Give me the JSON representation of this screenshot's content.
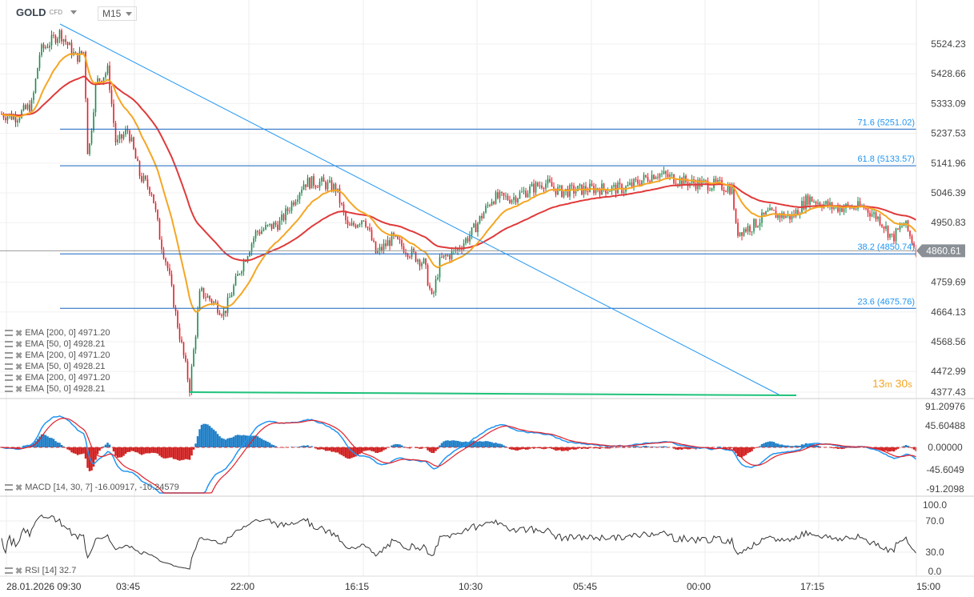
{
  "header": {
    "symbol": "GOLD",
    "instrument_type": "CFD",
    "timeframe": "M15"
  },
  "legends": {
    "ema": [
      {
        "label": "EMA",
        "params": "[200,  0]",
        "value": "4971.20"
      },
      {
        "label": "EMA",
        "params": "[50,  0]",
        "value": "4928.21"
      },
      {
        "label": "EMA",
        "params": "[200,  0]",
        "value": "4971.20"
      },
      {
        "label": "EMA",
        "params": "[50,  0]",
        "value": "4928.21"
      },
      {
        "label": "EMA",
        "params": "[200,  0]",
        "value": "4971.20"
      },
      {
        "label": "EMA",
        "params": "[50,  0]",
        "value": "4928.21"
      }
    ],
    "macd": {
      "label": "MACD",
      "params": "[14, 30, 7]",
      "value": "-16.00917,  -10.24579"
    },
    "rsi": {
      "label": "RSI",
      "params": "[14]",
      "value": "32.7"
    }
  },
  "timer": {
    "minutes": "13",
    "m": "m",
    "seconds": "30",
    "s": "s"
  },
  "colors": {
    "up": "#1e8a4c",
    "down": "#e0202a",
    "ema50": "#f5a623",
    "ema200": "#e03a3a",
    "trend": "#2196f3",
    "support": "#1ec27a",
    "fib": "#1976d2",
    "macd": "#2196f3",
    "signal": "#e0202a",
    "rsi": "#333333"
  },
  "chart_data": {
    "type": "candlestick",
    "symbol": "GOLD",
    "price_axis_ticks": [
      "5524.23",
      "5428.66",
      "5333.09",
      "5237.53",
      "5141.96",
      "5046.39",
      "4950.83",
      "4759.69",
      "4664.13",
      "4568.56",
      "4472.99",
      "4377.43"
    ],
    "current_price": "4860.61",
    "time_ticks": [
      "28.01.2026  09:30",
      "03:45",
      "22:00",
      "16:15",
      "10:30",
      "05:45",
      "00:00",
      "17:15",
      "15:00"
    ],
    "close_path": [
      [
        0,
        5300
      ],
      [
        20,
        5290
      ],
      [
        40,
        5330
      ],
      [
        50,
        5500
      ],
      [
        75,
        5560
      ],
      [
        95,
        5480
      ],
      [
        105,
        5500
      ],
      [
        110,
        5150
      ],
      [
        120,
        5400
      ],
      [
        135,
        5440
      ],
      [
        145,
        5200
      ],
      [
        160,
        5250
      ],
      [
        175,
        5100
      ],
      [
        190,
        5050
      ],
      [
        200,
        4900
      ],
      [
        210,
        4800
      ],
      [
        220,
        4650
      ],
      [
        237,
        4420
      ],
      [
        250,
        4730
      ],
      [
        265,
        4700
      ],
      [
        280,
        4660
      ],
      [
        300,
        4800
      ],
      [
        320,
        4920
      ],
      [
        350,
        4950
      ],
      [
        380,
        5080
      ],
      [
        400,
        5080
      ],
      [
        420,
        5060
      ],
      [
        435,
        4930
      ],
      [
        455,
        4970
      ],
      [
        470,
        4850
      ],
      [
        490,
        4900
      ],
      [
        510,
        4860
      ],
      [
        530,
        4820
      ],
      [
        540,
        4700
      ],
      [
        550,
        4830
      ],
      [
        570,
        4860
      ],
      [
        590,
        4920
      ],
      [
        615,
        5030
      ],
      [
        640,
        5030
      ],
      [
        680,
        5080
      ],
      [
        700,
        5050
      ],
      [
        740,
        5060
      ],
      [
        780,
        5060
      ],
      [
        820,
        5110
      ],
      [
        860,
        5080
      ],
      [
        900,
        5070
      ],
      [
        915,
        5060
      ],
      [
        920,
        4920
      ],
      [
        940,
        4940
      ],
      [
        960,
        4980
      ],
      [
        990,
        4970
      ],
      [
        1010,
        5030
      ],
      [
        1040,
        5000
      ],
      [
        1080,
        5000
      ],
      [
        1100,
        4960
      ],
      [
        1115,
        4900
      ],
      [
        1130,
        4950
      ],
      [
        1145,
        4860
      ]
    ],
    "fibonacci": [
      {
        "label": "71.6 (5251.02)",
        "level": 5251.02
      },
      {
        "label": "61.8 (5133.57)",
        "level": 5133.57
      },
      {
        "label": "38.2 (4850.74)",
        "level": 4850.74
      },
      {
        "label": "23.6 (4675.76)",
        "level": 4675.76
      }
    ],
    "indicators": {
      "ema": [
        50,
        200
      ],
      "macd": {
        "ticks": [
          "91.20976",
          "45.60488",
          "0.00000",
          "-45.6049",
          "-91.2098"
        ]
      },
      "rsi": {
        "ticks": [
          "100.0",
          "70.0",
          "30.0",
          "0.0"
        ],
        "value": 32.7
      }
    }
  }
}
